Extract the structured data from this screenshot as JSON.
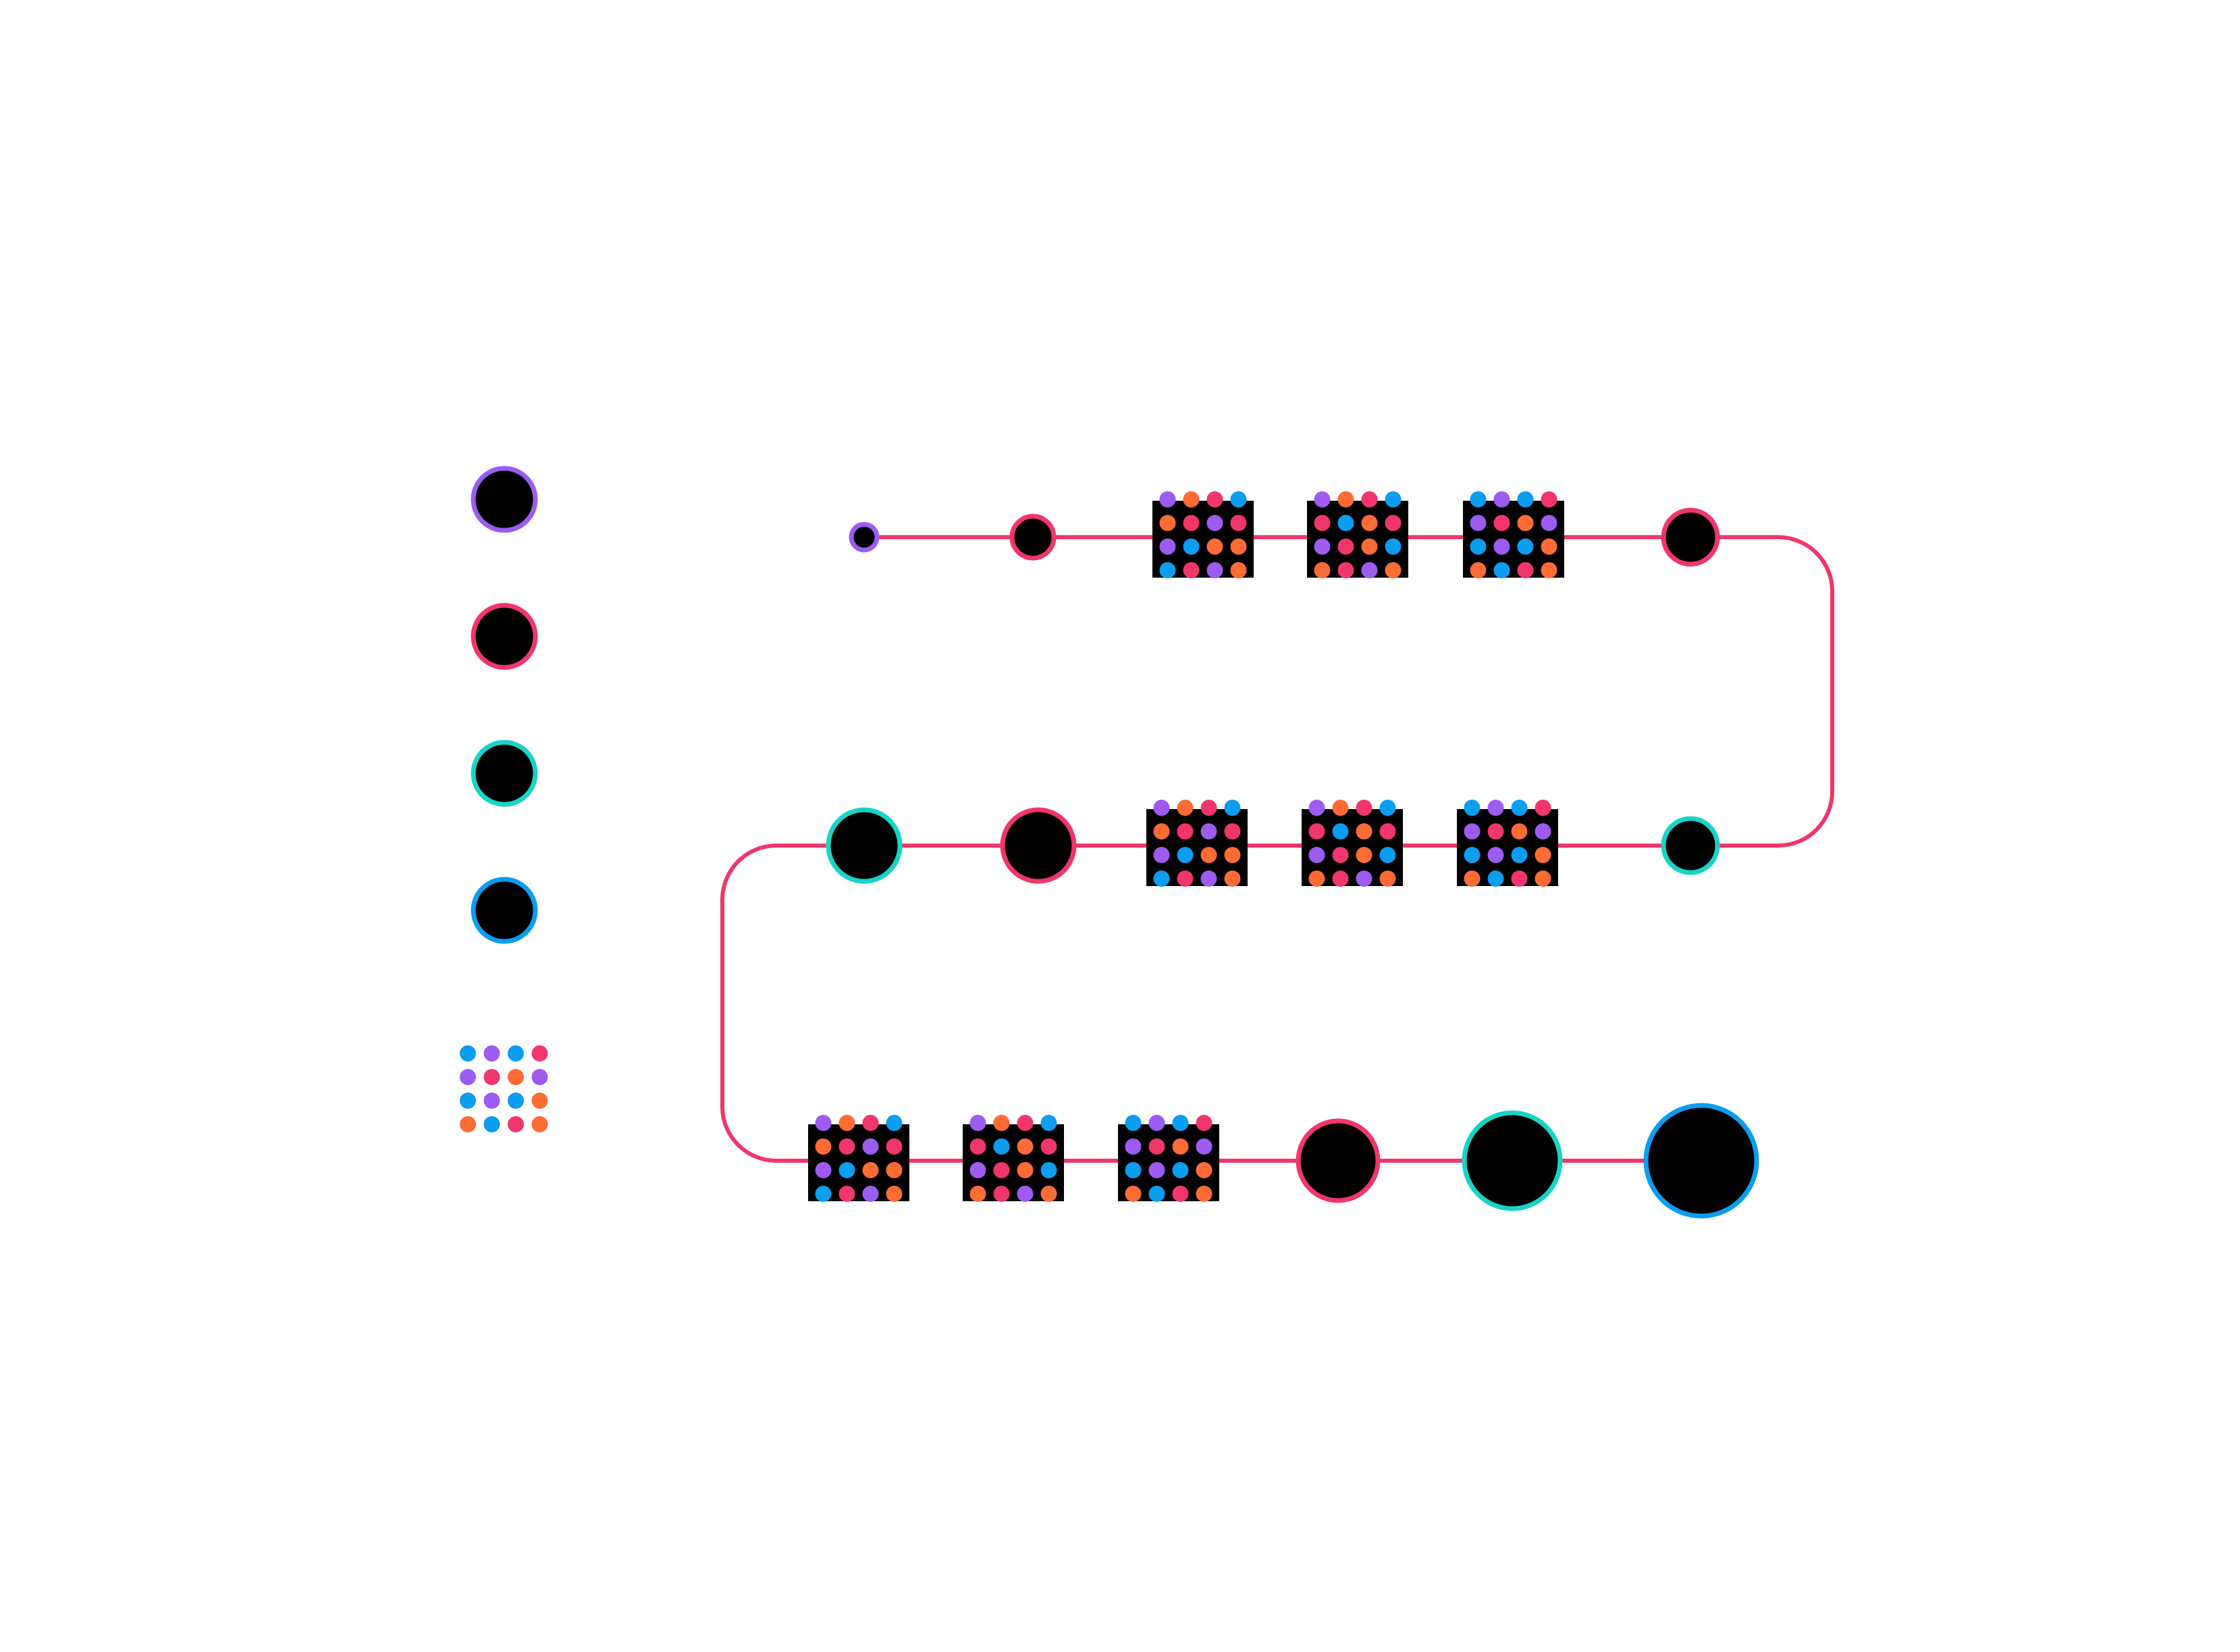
{
  "colors": {
    "background": "#ffffff",
    "node_fill": "#000000",
    "connector": "#f0366b",
    "purple": "#9d5cf0",
    "red": "#f0366b",
    "cyan": "#17d4c6",
    "blue": "#0b9df0",
    "orange": "#ff6b35"
  },
  "legend": {
    "items": [
      {
        "name": "purple-ring-node",
        "ring": "purple"
      },
      {
        "name": "red-ring-node",
        "ring": "red"
      },
      {
        "name": "cyan-ring-node",
        "ring": "cyan"
      },
      {
        "name": "blue-ring-node",
        "ring": "blue"
      }
    ],
    "dot_grid": {
      "rows": [
        [
          "blue",
          "purple",
          "blue",
          "red"
        ],
        [
          "purple",
          "red",
          "orange",
          "purple"
        ],
        [
          "blue",
          "purple",
          "blue",
          "orange"
        ],
        [
          "orange",
          "blue",
          "red",
          "orange"
        ]
      ]
    }
  },
  "flow": {
    "row_1": [
      {
        "kind": "circle",
        "ring": "purple",
        "scale": 1
      },
      {
        "kind": "circle",
        "ring": "red",
        "scale": 2
      },
      {
        "kind": "block",
        "rows": [
          [
            "purple",
            "orange",
            "red",
            "blue"
          ],
          [
            "orange",
            "red",
            "purple",
            "red"
          ],
          [
            "purple",
            "blue",
            "orange",
            "orange"
          ],
          [
            "blue",
            "red",
            "purple",
            "orange"
          ]
        ]
      },
      {
        "kind": "block",
        "rows": [
          [
            "purple",
            "orange",
            "red",
            "blue"
          ],
          [
            "red",
            "blue",
            "orange",
            "red"
          ],
          [
            "purple",
            "red",
            "orange",
            "blue"
          ],
          [
            "orange",
            "red",
            "purple",
            "orange"
          ]
        ]
      },
      {
        "kind": "block",
        "rows": [
          [
            "blue",
            "purple",
            "blue",
            "red"
          ],
          [
            "purple",
            "red",
            "orange",
            "purple"
          ],
          [
            "blue",
            "purple",
            "blue",
            "orange"
          ],
          [
            "orange",
            "blue",
            "red",
            "orange"
          ]
        ]
      },
      {
        "kind": "circle",
        "ring": "red",
        "scale": 3
      }
    ],
    "row_2": [
      {
        "kind": "circle",
        "ring": "cyan",
        "scale": 4
      },
      {
        "kind": "circle",
        "ring": "red",
        "scale": 4
      },
      {
        "kind": "block",
        "rows": [
          [
            "purple",
            "orange",
            "red",
            "blue"
          ],
          [
            "orange",
            "red",
            "purple",
            "red"
          ],
          [
            "purple",
            "blue",
            "orange",
            "orange"
          ],
          [
            "blue",
            "red",
            "purple",
            "orange"
          ]
        ]
      },
      {
        "kind": "block",
        "rows": [
          [
            "purple",
            "orange",
            "red",
            "blue"
          ],
          [
            "red",
            "blue",
            "orange",
            "red"
          ],
          [
            "purple",
            "red",
            "orange",
            "blue"
          ],
          [
            "orange",
            "red",
            "purple",
            "orange"
          ]
        ]
      },
      {
        "kind": "block",
        "rows": [
          [
            "blue",
            "purple",
            "blue",
            "red"
          ],
          [
            "purple",
            "red",
            "orange",
            "purple"
          ],
          [
            "blue",
            "purple",
            "blue",
            "orange"
          ],
          [
            "orange",
            "blue",
            "red",
            "orange"
          ]
        ]
      },
      {
        "kind": "circle",
        "ring": "cyan",
        "scale": 3
      }
    ],
    "row_3": [
      {
        "kind": "block",
        "rows": [
          [
            "purple",
            "orange",
            "red",
            "blue"
          ],
          [
            "orange",
            "red",
            "purple",
            "red"
          ],
          [
            "purple",
            "blue",
            "orange",
            "orange"
          ],
          [
            "blue",
            "red",
            "purple",
            "orange"
          ]
        ]
      },
      {
        "kind": "block",
        "rows": [
          [
            "purple",
            "orange",
            "red",
            "blue"
          ],
          [
            "red",
            "blue",
            "orange",
            "red"
          ],
          [
            "purple",
            "red",
            "orange",
            "blue"
          ],
          [
            "orange",
            "red",
            "purple",
            "orange"
          ]
        ]
      },
      {
        "kind": "block",
        "rows": [
          [
            "blue",
            "purple",
            "blue",
            "red"
          ],
          [
            "purple",
            "red",
            "orange",
            "purple"
          ],
          [
            "blue",
            "purple",
            "blue",
            "orange"
          ],
          [
            "orange",
            "blue",
            "red",
            "orange"
          ]
        ]
      },
      {
        "kind": "circle",
        "ring": "red",
        "scale": 5
      },
      {
        "kind": "circle",
        "ring": "cyan",
        "scale": 6
      },
      {
        "kind": "circle",
        "ring": "blue",
        "scale": 7
      }
    ]
  }
}
